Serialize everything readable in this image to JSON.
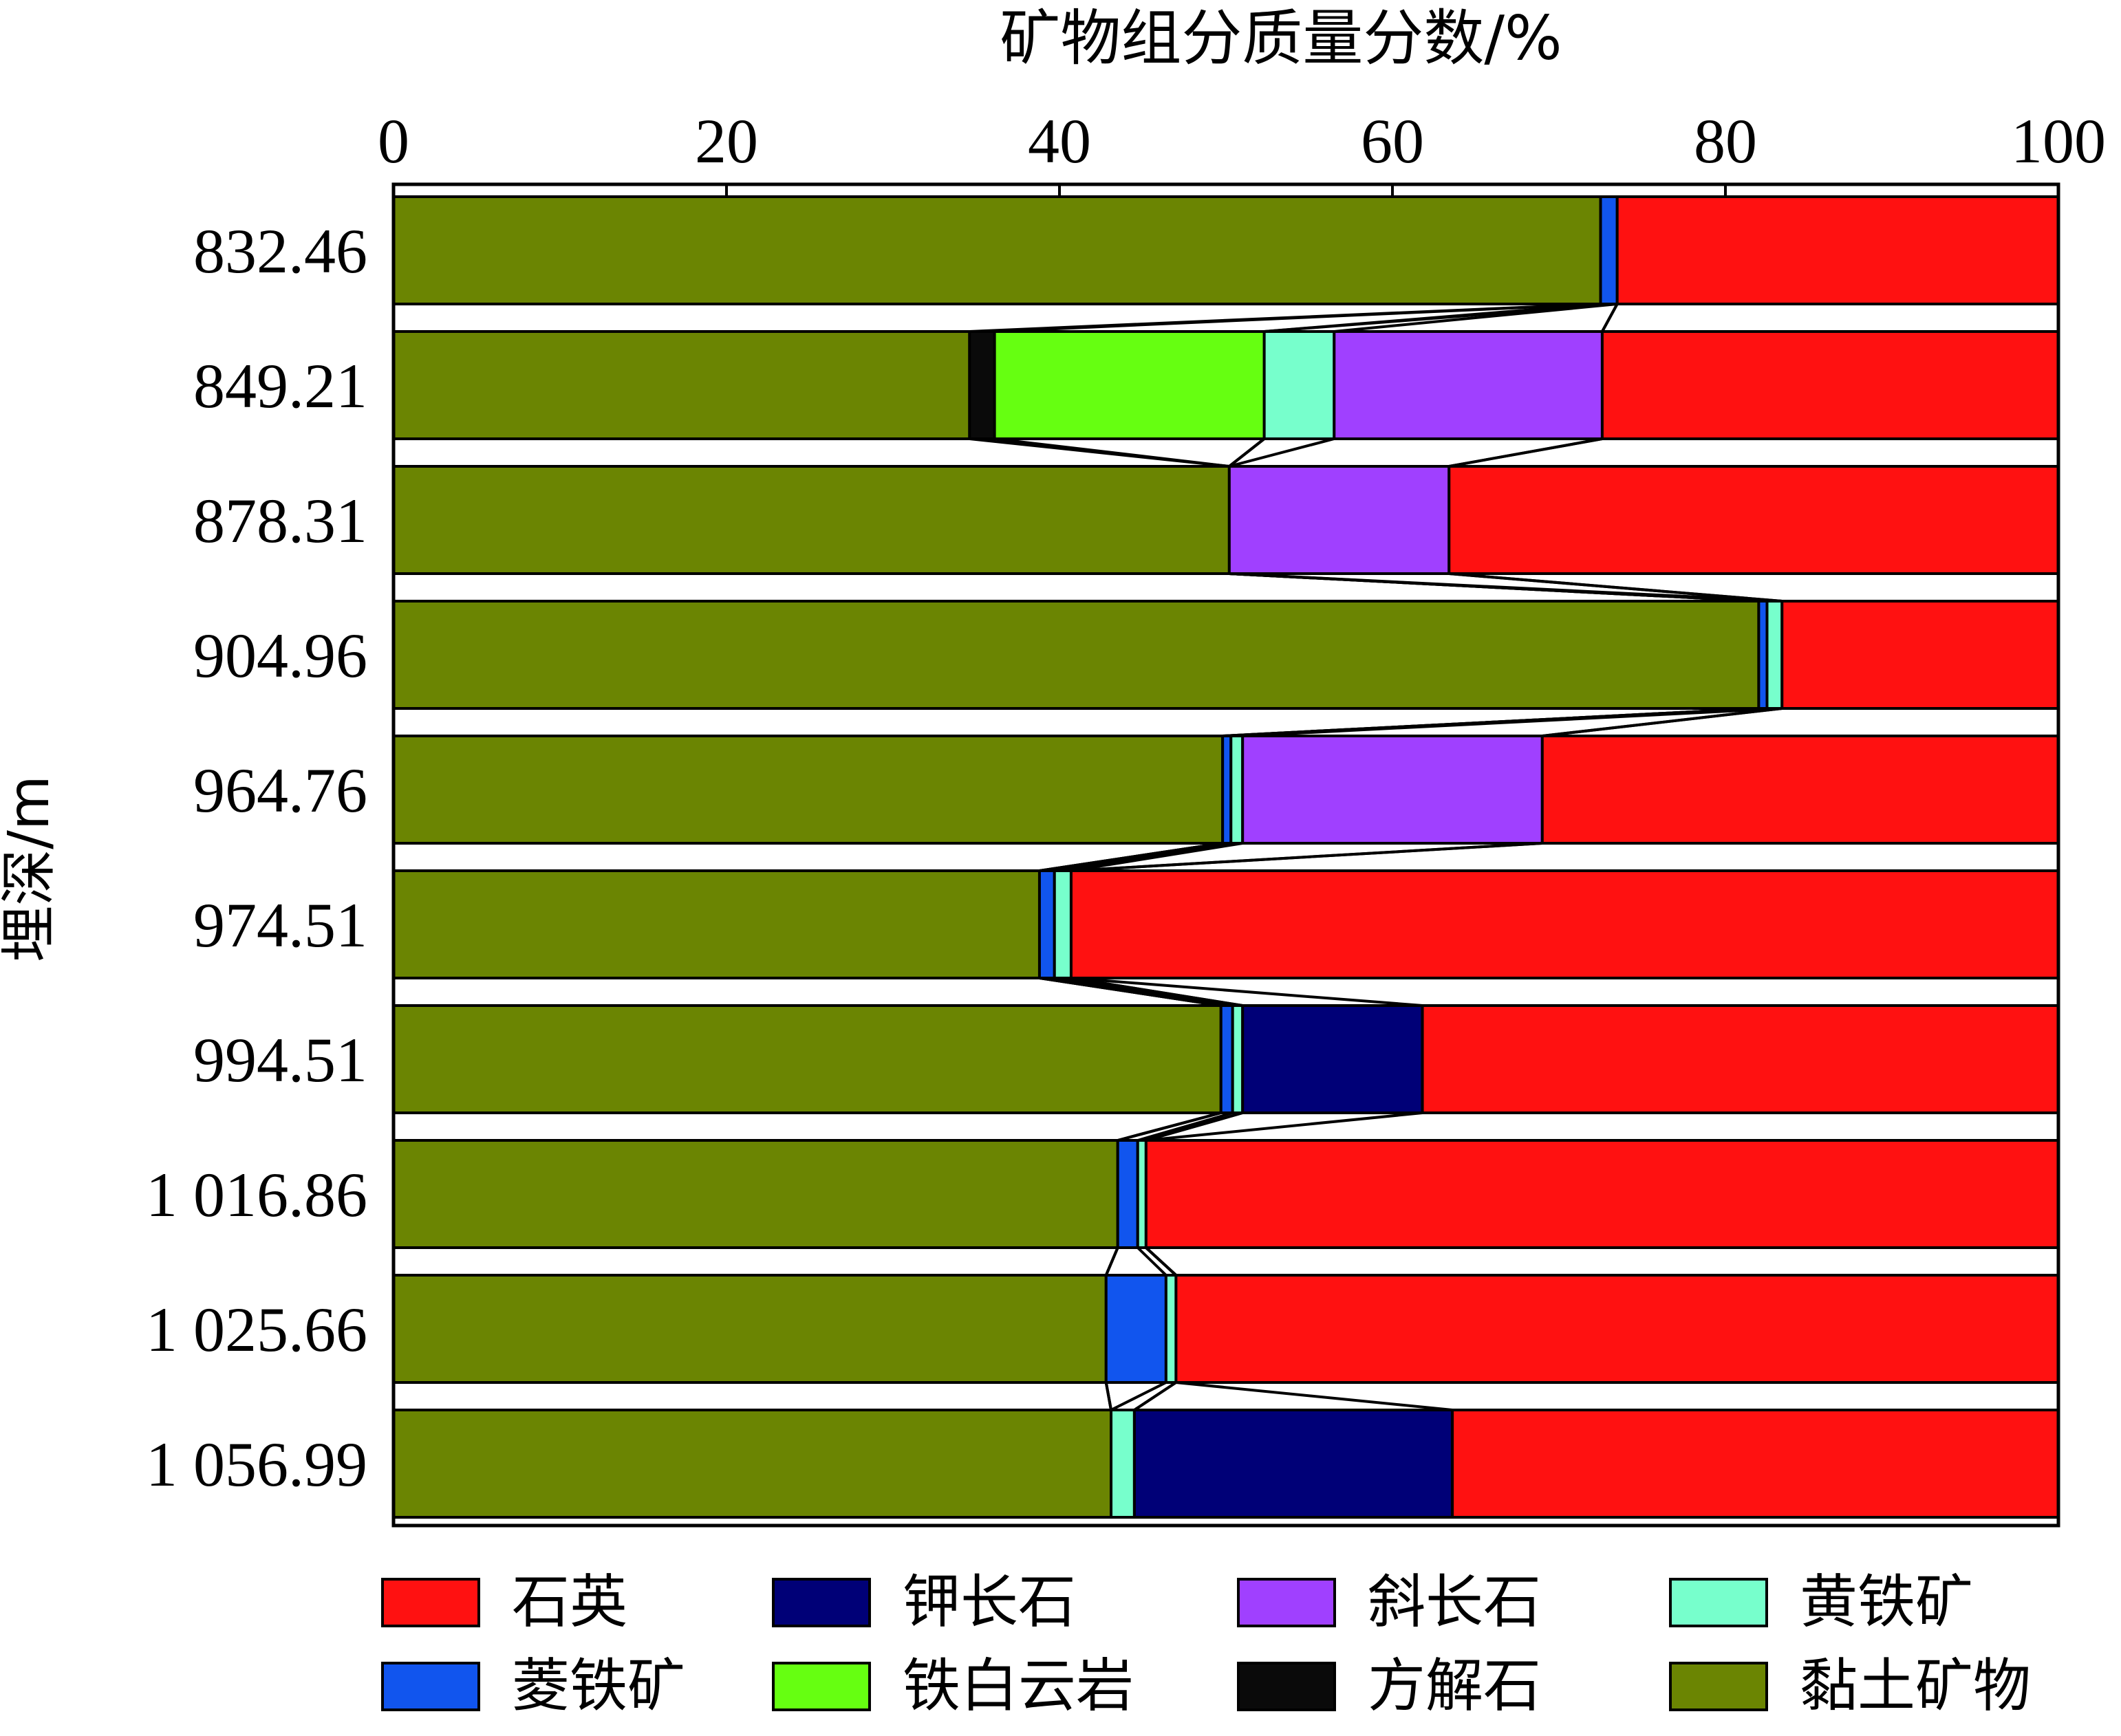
{
  "chart_data": {
    "type": "bar",
    "orientation": "horizontal",
    "stacked": true,
    "xlabel": "矿物组分质量分数/%",
    "ylabel": "埋深/m",
    "xlim": [
      0,
      100
    ],
    "xticks": [
      "0",
      "20",
      "40",
      "60",
      "80",
      "100"
    ],
    "categories": [
      "832.46",
      "849.21",
      "878.31",
      "904.96",
      "964.76",
      "974.51",
      "994.51",
      "1 016.86",
      "1 025.66",
      "1 056.99"
    ],
    "series": [
      {
        "name": "黏土矿物",
        "color": "#6b8502",
        "values": [
          72.5,
          34.6,
          50.2,
          82.0,
          49.8,
          38.8,
          49.7,
          43.5,
          42.8,
          43.1
        ]
      },
      {
        "name": "方解石",
        "color": "#0a0a0a",
        "values": [
          0,
          1.5,
          0,
          0,
          0,
          0,
          0,
          0,
          0,
          0
        ]
      },
      {
        "name": "铁白云岩",
        "color": "#66ff11",
        "values": [
          0,
          16.2,
          0,
          0,
          0,
          0,
          0,
          0,
          0,
          0
        ]
      },
      {
        "name": "菱铁矿",
        "color": "#1155ee",
        "values": [
          1.0,
          0,
          0,
          0.5,
          0.5,
          0.9,
          0.7,
          1.2,
          3.6,
          0
        ]
      },
      {
        "name": "黄铁矿",
        "color": "#77ffcc",
        "values": [
          0,
          4.2,
          0,
          0.9,
          0.7,
          1.0,
          0.6,
          0.5,
          0.6,
          1.4
        ]
      },
      {
        "name": "斜长石",
        "color": "#a040ff",
        "values": [
          0,
          16.1,
          13.2,
          0,
          18.0,
          0,
          0,
          0,
          0,
          0
        ]
      },
      {
        "name": "钾长石",
        "color": "#000077",
        "values": [
          0,
          0,
          0,
          0,
          0,
          0,
          10.8,
          0,
          0,
          19.1
        ]
      },
      {
        "name": "石英",
        "color": "#ff1111",
        "values": [
          26.5,
          27.4,
          36.6,
          16.6,
          31.0,
          59.3,
          38.2,
          54.8,
          53.0,
          36.4
        ]
      }
    ],
    "legend": {
      "placement": "bottom",
      "order": [
        "石英",
        "钾长石",
        "斜长石",
        "黄铁矿",
        "菱铁矿",
        "铁白云岩",
        "方解石",
        "黏土矿物"
      ]
    },
    "grid": false
  }
}
